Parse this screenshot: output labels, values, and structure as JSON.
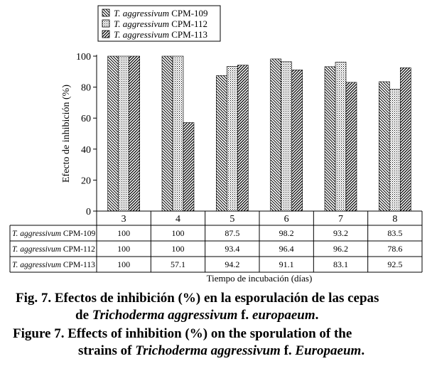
{
  "chart_data": {
    "type": "bar",
    "categories": [
      "3",
      "4",
      "5",
      "6",
      "7",
      "8"
    ],
    "series": [
      {
        "name_italic": "T. aggressivum",
        "name_rest": "CPM-109",
        "pattern": "diag-down",
        "values": [
          100,
          100,
          87.5,
          98.2,
          93.2,
          83.5
        ]
      },
      {
        "name_italic": "T. aggressivum",
        "name_rest": "CPM-112",
        "pattern": "dots",
        "values": [
          100,
          100,
          93.4,
          96.4,
          96.2,
          78.6
        ]
      },
      {
        "name_italic": "T. aggressivum",
        "name_rest": "CPM-113",
        "pattern": "diag-up",
        "values": [
          100,
          57.1,
          94.2,
          91.1,
          83.1,
          92.5
        ]
      }
    ],
    "table_values": [
      [
        "100",
        "100",
        "87.5",
        "98.2",
        "93.2",
        "83.5"
      ],
      [
        "100",
        "100",
        "93.4",
        "96.4",
        "96.2",
        "78.6"
      ],
      [
        "100",
        "57.1",
        "94.2",
        "91.1",
        "83.1",
        "92.5"
      ]
    ],
    "ylabel": "Efecto de inhibición (%)",
    "xlabel": "Tiempo de incubación (días)",
    "ylim": [
      0,
      100
    ],
    "yticks": [
      "0",
      "20",
      "40",
      "60",
      "80",
      "100"
    ],
    "legend_position": "top-center",
    "grid": false
  },
  "caption": {
    "es_line1": "Fig. 7. Efectos de inhibición (%) en la esporulación de las cepas",
    "es_line2_pre": "de ",
    "es_line2_italic": "Trichoderma aggressivum",
    "es_line2_mid": " f. ",
    "es_line2_italic2": "europaeum",
    "es_line2_post": ".",
    "en_line1": "Figure 7. Effects of inhibition (%) on the sporulation of the",
    "en_line2_pre": "strains of ",
    "en_line2_italic": "Trichoderma aggressivum",
    "en_line2_mid": " f. ",
    "en_line2_italic2": "Europaeum",
    "en_line2_post": "."
  },
  "colors": {
    "ink": "#000000",
    "background": "#ffffff"
  }
}
